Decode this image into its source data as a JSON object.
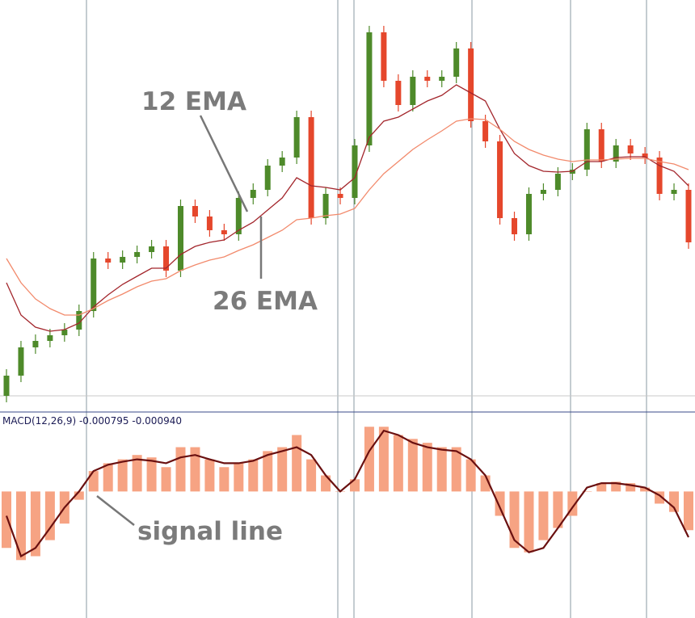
{
  "chart_data": [
    {
      "type": "candlestick",
      "ylim": [
        0,
        510
      ],
      "up_color": "#4e8a2a",
      "down_color": "#e5472c",
      "open": [
        20,
        45,
        80,
        88,
        95,
        102,
        125,
        190,
        185,
        192,
        198,
        205,
        175,
        255,
        242,
        225,
        220,
        265,
        275,
        305,
        315,
        365,
        240,
        270,
        265,
        330,
        470,
        410,
        380,
        415,
        410,
        415,
        450,
        360,
        335,
        240,
        220,
        270,
        275,
        295,
        300,
        350,
        310,
        330,
        320,
        315,
        270,
        275
      ],
      "high": [
        53,
        88,
        96,
        103,
        110,
        133,
        198,
        198,
        200,
        206,
        213,
        213,
        263,
        263,
        250,
        233,
        273,
        283,
        313,
        323,
        373,
        373,
        278,
        278,
        338,
        478,
        478,
        418,
        423,
        423,
        423,
        458,
        458,
        368,
        343,
        248,
        278,
        283,
        303,
        308,
        358,
        358,
        338,
        338,
        328,
        323,
        283,
        283
      ],
      "low": [
        12,
        37,
        72,
        80,
        87,
        94,
        117,
        177,
        177,
        184,
        190,
        167,
        167,
        234,
        217,
        212,
        212,
        257,
        267,
        297,
        307,
        232,
        232,
        257,
        257,
        322,
        402,
        372,
        372,
        402,
        402,
        407,
        352,
        327,
        232,
        212,
        212,
        262,
        267,
        287,
        292,
        302,
        302,
        312,
        307,
        262,
        262,
        202
      ],
      "close": [
        45,
        80,
        88,
        95,
        102,
        125,
        190,
        185,
        192,
        198,
        205,
        175,
        255,
        242,
        225,
        220,
        265,
        275,
        305,
        315,
        365,
        240,
        270,
        265,
        330,
        470,
        410,
        380,
        415,
        410,
        415,
        450,
        360,
        335,
        240,
        220,
        270,
        275,
        295,
        300,
        350,
        310,
        330,
        320,
        315,
        270,
        275,
        210
      ],
      "series": [
        {
          "color": "#a3262c",
          "values": [
            160,
            120,
            105,
            100,
            102,
            110,
            130,
            145,
            158,
            168,
            178,
            178,
            195,
            205,
            210,
            213,
            225,
            235,
            250,
            265,
            290,
            280,
            278,
            275,
            290,
            340,
            360,
            365,
            375,
            385,
            392,
            405,
            395,
            385,
            350,
            320,
            305,
            298,
            297,
            298,
            310,
            310,
            315,
            316,
            316,
            305,
            298,
            280
          ]
        },
        {
          "color": "#f28a6c",
          "values": [
            190,
            160,
            140,
            128,
            120,
            120,
            128,
            138,
            146,
            155,
            162,
            165,
            175,
            182,
            188,
            192,
            200,
            207,
            216,
            225,
            238,
            240,
            243,
            245,
            252,
            275,
            295,
            310,
            325,
            337,
            348,
            360,
            363,
            362,
            350,
            335,
            325,
            318,
            313,
            310,
            312,
            312,
            313,
            314,
            314,
            310,
            307,
            300
          ]
        }
      ],
      "annotations": [
        "12 EMA",
        "26 EMA"
      ]
    },
    {
      "type": "bar",
      "title": "MACD(12,26,9)",
      "readout": [
        -0.000795,
        {
          "value": -0.00094,
          "label": "-0.000940"
        }
      ],
      "ylim": [
        -0.0026,
        0.0016
      ],
      "series": [
        {
          "color": "#f6a383",
          "values": [
            -0.00116,
            -0.00141,
            -0.00133,
            -0.001,
            -0.00066,
            -0.00017,
            0.00042,
            0.00058,
            0.00066,
            0.00075,
            0.0007,
            0.0005,
            0.00091,
            0.00091,
            0.00066,
            0.0005,
            0.00058,
            0.00066,
            0.00083,
            0.00091,
            0.00116,
            0.00066,
            0.00033,
            0,
            0.00025,
            0.00133,
            0.00133,
            0.00116,
            0.00108,
            0.001,
            0.00091,
            0.00091,
            0.00066,
            0.00033,
            -0.0005,
            -0.00116,
            -0.00125,
            -0.001,
            -0.00075,
            -0.0005,
            0,
            0.00017,
            0.0002,
            0.00017,
            8e-05,
            -0.00025,
            -0.00042,
            -0.000795
          ]
        },
        {
          "type": "line",
          "color": "#6a1010",
          "values": [
            -0.0005,
            -0.00133,
            -0.00116,
            -0.00075,
            -0.00033,
            0,
            0.00042,
            0.00055,
            0.00061,
            0.00066,
            0.00063,
            0.00058,
            0.0007,
            0.00075,
            0.00066,
            0.00058,
            0.00058,
            0.00063,
            0.00075,
            0.00083,
            0.00091,
            0.00075,
            0.00033,
            0,
            0.00025,
            0.00083,
            0.00125,
            0.00116,
            0.001,
            0.00091,
            0.00086,
            0.00083,
            0.00066,
            0.00033,
            -0.00033,
            -0.001,
            -0.00125,
            -0.00116,
            -0.00075,
            -0.00033,
            8e-05,
            0.00017,
            0.00017,
            0.00013,
            8e-05,
            -8e-05,
            -0.00033,
            -0.00094
          ]
        }
      ],
      "annotations": [
        "signal line"
      ]
    }
  ]
}
